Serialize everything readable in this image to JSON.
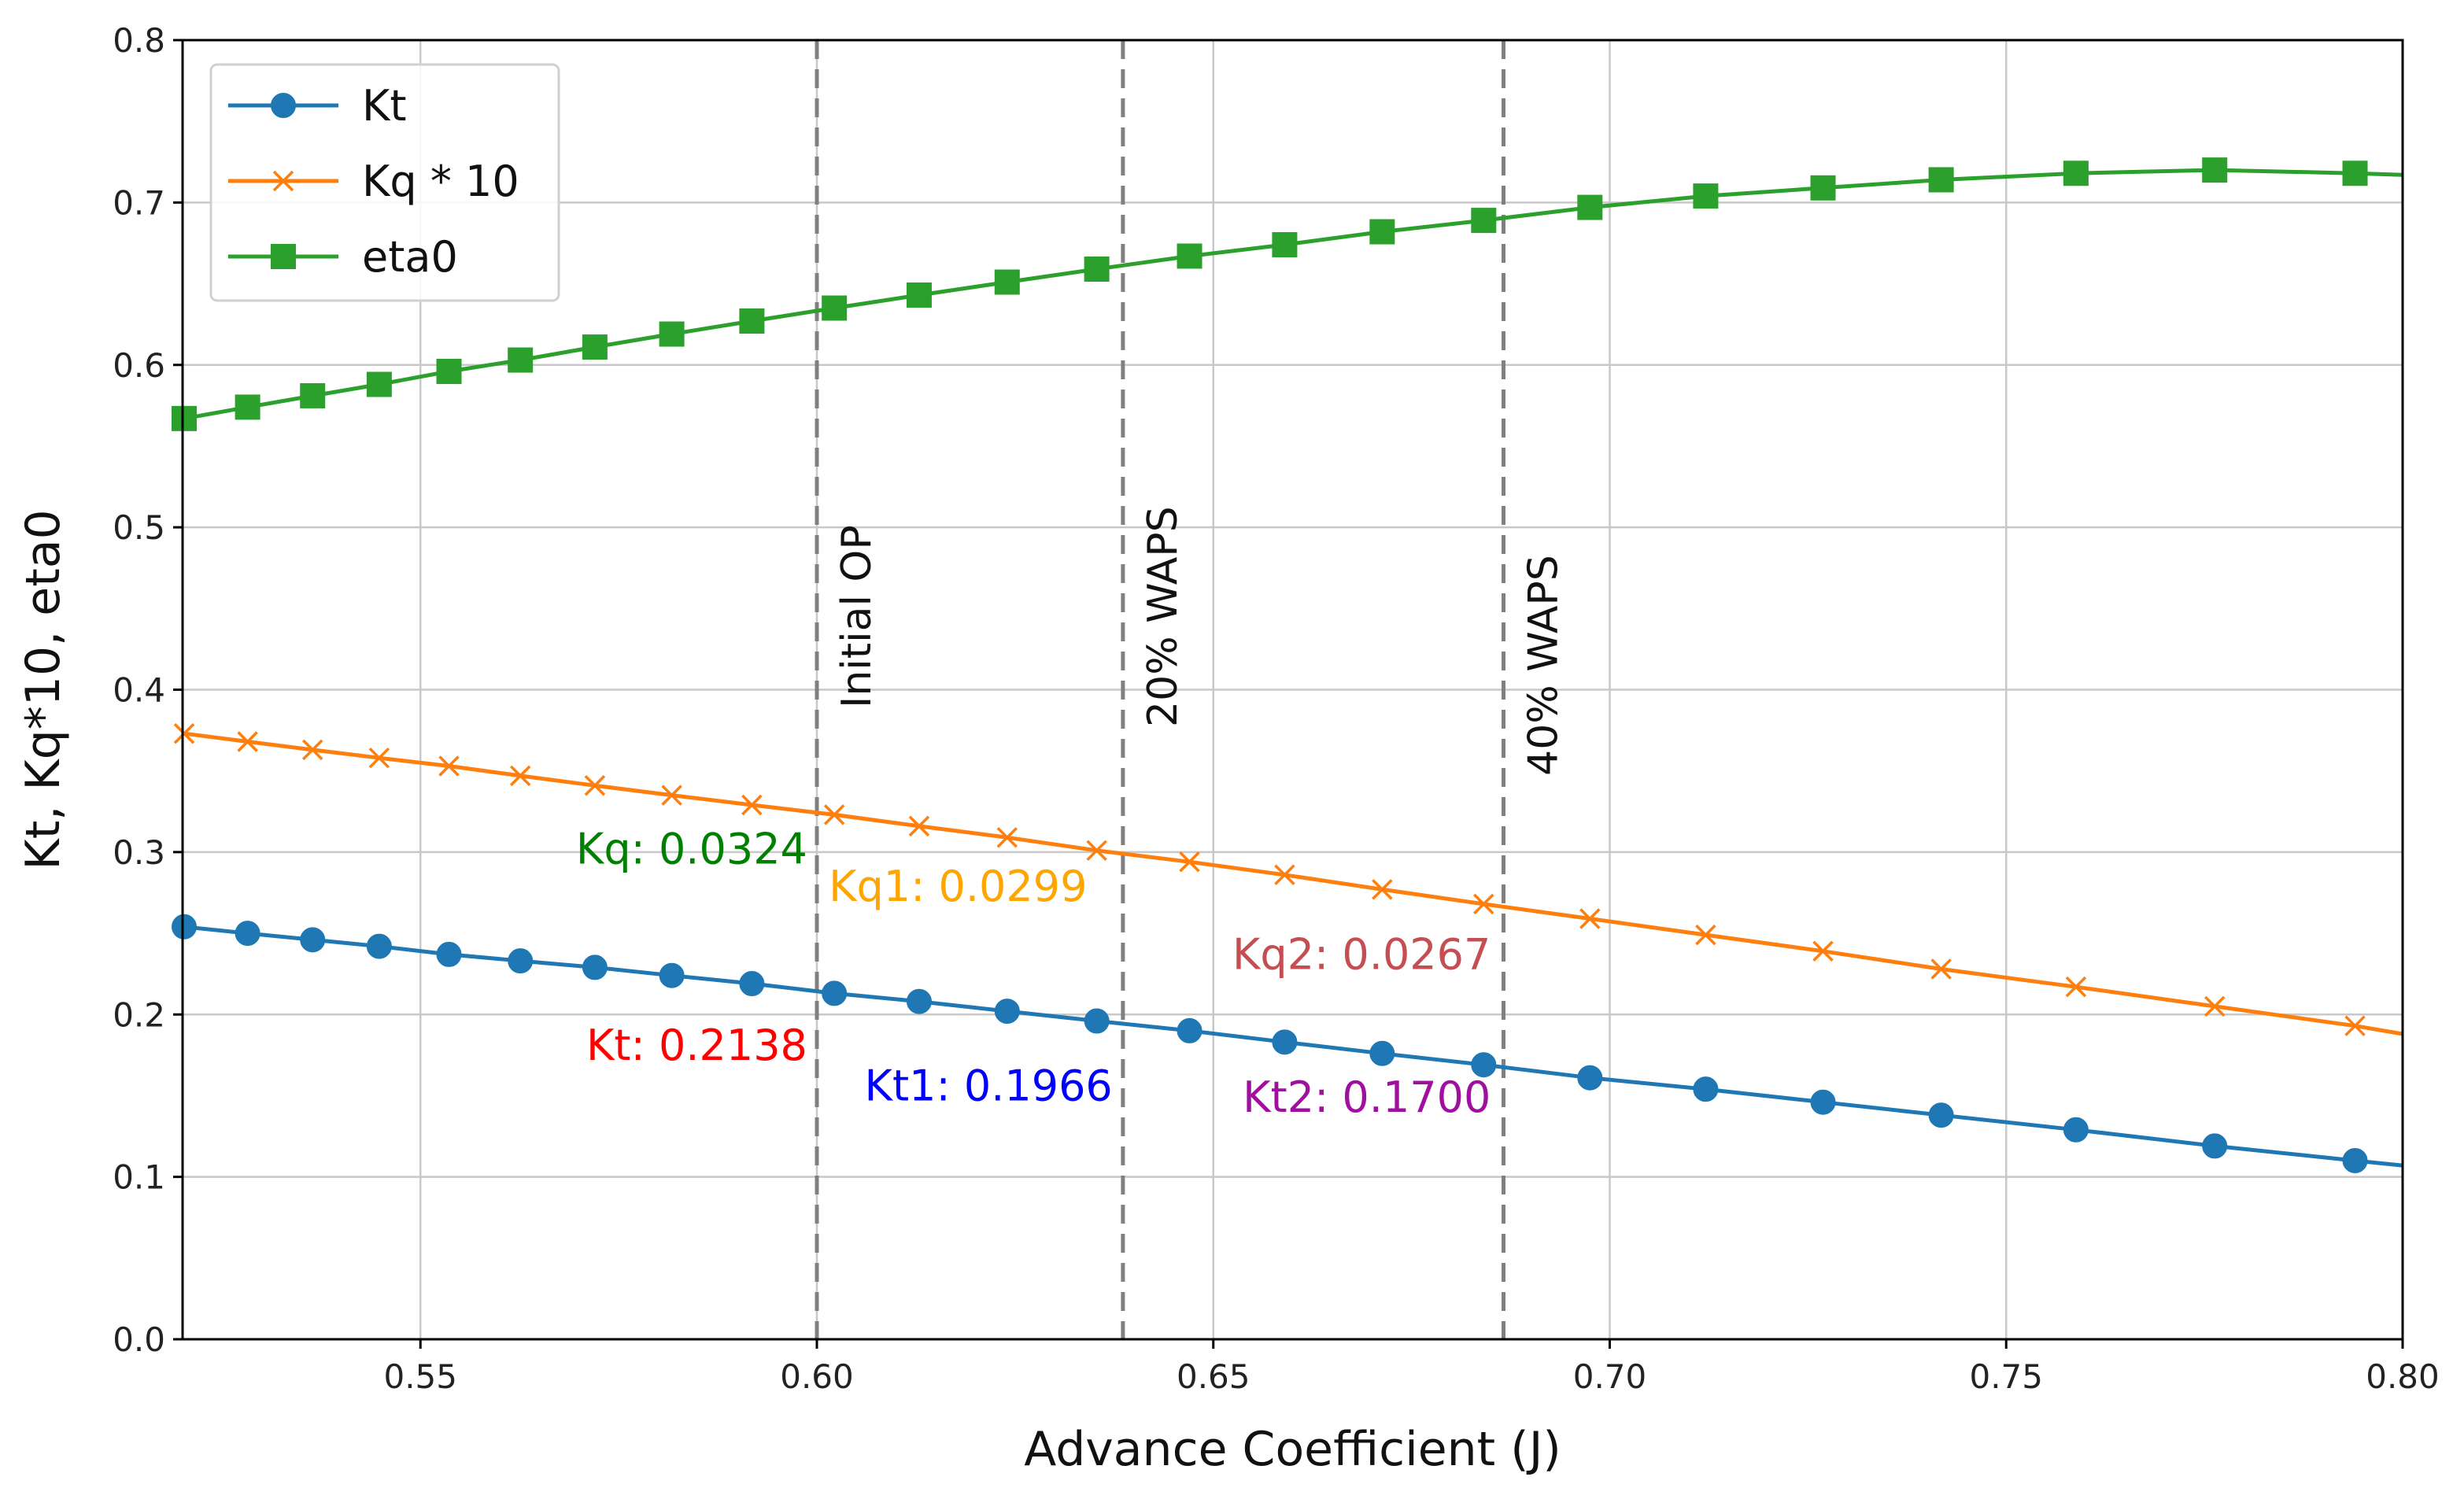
{
  "chart_data": {
    "type": "line",
    "xlabel": "Advance Coefficient (J)",
    "ylabel": "Kt, Kq*10, eta0",
    "xlim": [
      0.52,
      0.8
    ],
    "ylim": [
      0.0,
      0.8
    ],
    "xticks": [
      0.55,
      0.6,
      0.65,
      0.7,
      0.75,
      0.8
    ],
    "xtick_labels": [
      "0.55",
      "0.60",
      "0.65",
      "0.70",
      "0.75",
      "0.80"
    ],
    "yticks": [
      0.0,
      0.1,
      0.2,
      0.3,
      0.4,
      0.5,
      0.6,
      0.7,
      0.8
    ],
    "ytick_labels": [
      "0.0",
      "0.1",
      "0.2",
      "0.3",
      "0.4",
      "0.5",
      "0.6",
      "0.7",
      "0.8"
    ],
    "grid": true,
    "legend_position": "top-left",
    "x": [
      0.5202,
      0.5282,
      0.5364,
      0.5448,
      0.5536,
      0.5626,
      0.572,
      0.5817,
      0.5918,
      0.6022,
      0.6129,
      0.624,
      0.6353,
      0.647,
      0.659,
      0.6713,
      0.6841,
      0.6975,
      0.7121,
      0.7269,
      0.7418,
      0.7588,
      0.7763,
      0.794
    ],
    "series": [
      {
        "name": "Kt",
        "color": "#1f77b4",
        "marker": "circle",
        "values": [
          0.254,
          0.25,
          0.246,
          0.242,
          0.237,
          0.233,
          0.229,
          0.224,
          0.219,
          0.213,
          0.208,
          0.202,
          0.196,
          0.19,
          0.183,
          0.176,
          0.169,
          0.161,
          0.154,
          0.146,
          0.138,
          0.129,
          0.119,
          0.11
        ]
      },
      {
        "name": "Kq * 10",
        "color": "#ff7f0e",
        "marker": "x",
        "values": [
          0.373,
          0.368,
          0.363,
          0.358,
          0.353,
          0.347,
          0.341,
          0.335,
          0.329,
          0.323,
          0.316,
          0.309,
          0.301,
          0.294,
          0.286,
          0.277,
          0.268,
          0.259,
          0.249,
          0.239,
          0.228,
          0.217,
          0.205,
          0.193
        ]
      },
      {
        "name": "eta0",
        "color": "#2ca02c",
        "marker": "square",
        "values": [
          0.567,
          0.574,
          0.581,
          0.588,
          0.596,
          0.603,
          0.611,
          0.619,
          0.627,
          0.635,
          0.643,
          0.651,
          0.659,
          0.667,
          0.674,
          0.682,
          0.689,
          0.697,
          0.704,
          0.709,
          0.714,
          0.718,
          0.72,
          0.718
        ]
      }
    ],
    "curve_end": {
      "x": 0.8,
      "Kt": 0.107,
      "Kq * 10": 0.188,
      "eta0": 0.717
    },
    "vertical_lines": [
      {
        "x": 0.6,
        "label": "Initial OP"
      },
      {
        "x": 0.6386,
        "label": "20% WAPS"
      },
      {
        "x": 0.6866,
        "label": "40% WAPS"
      }
    ],
    "annotations": [
      {
        "text": "Kq: 0.0324",
        "color": "#008000",
        "x": 0.5988,
        "y": 0.293,
        "anchor": "end"
      },
      {
        "text": "Kq1: 0.0299",
        "color": "#ffa500",
        "x": 0.6015,
        "y": 0.27,
        "anchor": "start"
      },
      {
        "text": "Kq2: 0.0267",
        "color": "#c44e52",
        "x": 0.685,
        "y": 0.228,
        "anchor": "end"
      },
      {
        "text": "Kt: 0.2138",
        "color": "#ff0000",
        "x": 0.5988,
        "y": 0.172,
        "anchor": "end"
      },
      {
        "text": "Kt1: 0.1966",
        "color": "#0000ff",
        "x": 0.6373,
        "y": 0.147,
        "anchor": "end"
      },
      {
        "text": "Kt2: 0.1700",
        "color": "#a010a0",
        "x": 0.685,
        "y": 0.14,
        "anchor": "end"
      }
    ],
    "grid_color": "#c8c8c8",
    "vline_color": "#808080"
  }
}
